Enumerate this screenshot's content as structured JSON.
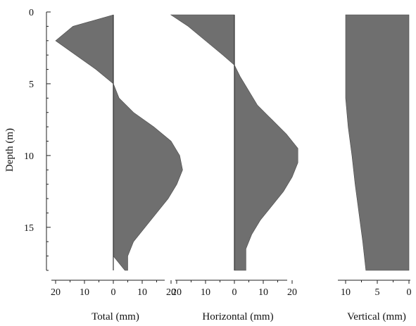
{
  "chart_data": [
    {
      "type": "area",
      "panel": "total",
      "xlabel": "Total (mm)",
      "ylabel": "Depth (m)",
      "x_tick_labels": [
        "20",
        "10",
        "0",
        "10",
        "20"
      ],
      "x_ticks": [
        -20,
        -10,
        0,
        10,
        20
      ],
      "y_ticks": [
        0,
        5,
        10,
        15
      ],
      "y_tick_labels": [
        "0",
        "5",
        "10",
        "15"
      ],
      "ylim": [
        0,
        18
      ],
      "xlim": [
        -22,
        22
      ],
      "series": [
        {
          "depth_m": [
            0.2,
            1.0,
            2.0,
            3.0,
            4.0,
            5.0,
            6.0,
            7.0,
            8.0,
            9.0,
            10.0,
            11.0,
            12.0,
            13.0,
            14.0,
            15.0,
            16.0,
            17.0,
            18.0
          ],
          "left_mm": [
            0,
            -14,
            -20,
            -13,
            -6,
            0,
            0,
            0,
            0,
            0,
            0,
            0,
            0,
            0,
            0,
            0,
            0,
            0,
            4
          ],
          "right_mm": [
            0,
            0,
            0,
            0,
            0,
            0,
            2,
            7,
            14,
            20,
            23,
            24,
            22,
            19,
            15,
            11,
            7,
            5,
            5
          ]
        }
      ],
      "fill_color": "#6f6f6f"
    },
    {
      "type": "area",
      "panel": "horizontal",
      "xlabel": "Horizontal (mm)",
      "x_tick_labels": [
        "20",
        "10",
        "0",
        "10",
        "20"
      ],
      "x_ticks": [
        -20,
        -10,
        0,
        10,
        20
      ],
      "ylim": [
        0,
        18
      ],
      "xlim": [
        -22,
        22
      ],
      "series": [
        {
          "depth_m": [
            0.2,
            1.0,
            2.0,
            3.0,
            3.7,
            4.5,
            5.5,
            6.5,
            7.5,
            8.5,
            9.5,
            10.5,
            11.5,
            12.5,
            13.5,
            14.5,
            15.5,
            16.5,
            17.2,
            18.0
          ],
          "left_mm": [
            -22,
            -16,
            -10,
            -4,
            0,
            0,
            0,
            0,
            0,
            0,
            0,
            0,
            0,
            0,
            0,
            0,
            0,
            0,
            0,
            0
          ],
          "right_mm": [
            0,
            0,
            0,
            0,
            0,
            2,
            5,
            8,
            13,
            18,
            22,
            22,
            20,
            17,
            13,
            9,
            6,
            4,
            4,
            4
          ]
        }
      ],
      "fill_color": "#6f6f6f"
    },
    {
      "type": "area",
      "panel": "vertical",
      "xlabel": "Vertical (mm)",
      "x_tick_labels": [
        "10",
        "5",
        "0"
      ],
      "x_ticks": [
        10,
        5,
        0
      ],
      "ylim": [
        0,
        18
      ],
      "xlim": [
        11,
        -0.5
      ],
      "series": [
        {
          "depth_m": [
            0.2,
            2.0,
            4.0,
            6.0,
            8.0,
            10.0,
            12.0,
            14.0,
            16.0,
            18.0
          ],
          "settlement_mm": [
            10.0,
            10.0,
            10.0,
            10.0,
            9.6,
            9.0,
            8.5,
            7.9,
            7.3,
            6.8
          ]
        }
      ],
      "fill_color": "#6f6f6f"
    }
  ]
}
